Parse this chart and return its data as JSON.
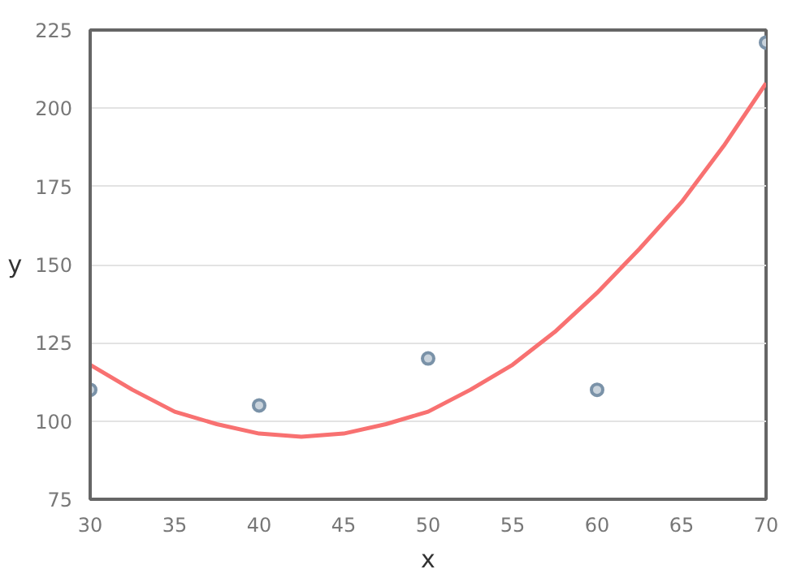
{
  "chart_data": {
    "type": "scatter",
    "xlabel": "x",
    "ylabel": "y",
    "xlim": [
      30,
      70
    ],
    "ylim": [
      75,
      225
    ],
    "xticks": [
      30,
      35,
      40,
      45,
      50,
      55,
      60,
      65,
      70
    ],
    "yticks": [
      75,
      100,
      125,
      150,
      175,
      200,
      225
    ],
    "grid": "y",
    "series": [
      {
        "color": "#7a92a8",
        "marker": "circle",
        "x": [
          30,
          40,
          50,
          60,
          70
        ],
        "values": [
          110,
          105,
          120,
          110,
          221
        ]
      },
      {
        "type": "line",
        "color": "#f87171",
        "line_style": "solid",
        "x": [
          30,
          32.5,
          35,
          37.5,
          40,
          42.5,
          45,
          47.5,
          50,
          52.5,
          55,
          57.5,
          60,
          62.5,
          65,
          67.5,
          70
        ],
        "values": [
          118,
          110,
          103,
          99,
          96,
          95,
          96,
          99,
          103,
          110,
          118,
          128.5,
          141,
          155,
          170,
          188,
          208
        ]
      }
    ]
  }
}
